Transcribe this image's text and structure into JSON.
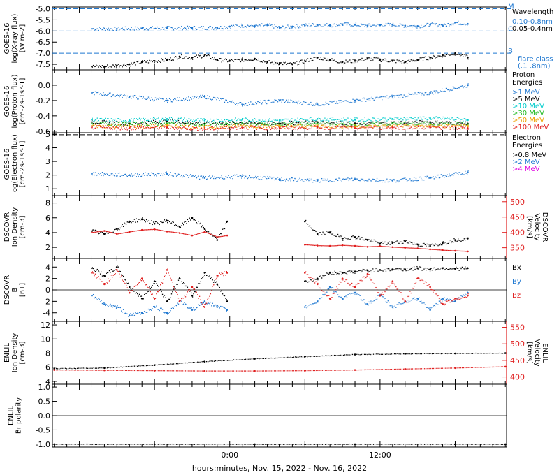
{
  "colors": {
    "black": "#000000",
    "blue": "#1f78d1",
    "cyan": "#00cccc",
    "green": "#22bb22",
    "orange": "#f0a000",
    "red": "#e01f1f",
    "magenta": "#e000e0"
  },
  "xaxis": {
    "label": "hours:minutes, Nov. 15, 2022 - Nov. 16, 2022",
    "ticks": [
      "0:00",
      "12:00"
    ]
  },
  "chart_data": [
    {
      "id": "xray",
      "type": "scatter",
      "ylabel": [
        "GOES-16",
        "log(X-ray flux)",
        "[W m-2]"
      ],
      "ylim": [
        -7.75,
        -4.92
      ],
      "yticks": [
        "-5.0",
        "-5.5",
        "-6.0",
        "-6.5",
        "-7.0",
        "-7.5"
      ],
      "yticks_values": [
        -5.0,
        -5.5,
        -6.0,
        -6.5,
        -7.0,
        -7.5
      ],
      "flare_levels": [
        {
          "label": "M",
          "value": -5.0
        },
        {
          "label": "C",
          "value": -6.0
        },
        {
          "label": "B",
          "value": -7.0
        }
      ],
      "legend_title": "Wavelength",
      "legend": [
        {
          "label": "0.10-0.8nm",
          "color": "#1f78d1"
        },
        {
          "label": "0.05-0.4nm",
          "color": "#000000"
        }
      ],
      "note": [
        "flare class",
        "(.1-.8nm)"
      ],
      "series": [
        {
          "name": "0.10-0.8nm",
          "color": "#1f78d1",
          "x": [
            -11,
            -9,
            -7,
            -5,
            -3,
            -1,
            0,
            1,
            2,
            3,
            4,
            5,
            6,
            7,
            8,
            9,
            10,
            11,
            12,
            13,
            14,
            15,
            16,
            17,
            18,
            19
          ],
          "y": [
            -5.9,
            -5.9,
            -5.88,
            -5.87,
            -5.86,
            -5.85,
            -5.8,
            -5.75,
            -5.77,
            -5.74,
            -5.85,
            -5.8,
            -5.75,
            -5.72,
            -5.74,
            -5.7,
            -5.72,
            -5.76,
            -5.74,
            -5.72,
            -5.76,
            -5.78,
            -5.72,
            -5.75,
            -5.62,
            -5.68
          ]
        },
        {
          "name": "0.05-0.4nm",
          "color": "#000000",
          "x": [
            -11,
            -10,
            -9,
            -8,
            -7,
            -6,
            -5,
            -4,
            -3,
            -2,
            -1,
            0,
            1,
            2,
            3,
            4,
            5,
            6,
            7,
            8,
            9,
            10,
            11,
            12,
            13,
            14,
            15,
            16,
            17,
            18,
            19
          ],
          "y": [
            -7.6,
            -7.6,
            -7.55,
            -7.5,
            -7.4,
            -7.35,
            -7.3,
            -7.15,
            -7.2,
            -7.1,
            -7.3,
            -7.35,
            -7.3,
            -7.25,
            -7.4,
            -7.45,
            -7.5,
            -7.35,
            -7.2,
            -7.3,
            -7.4,
            -7.35,
            -7.25,
            -7.3,
            -7.35,
            -7.4,
            -7.3,
            -7.2,
            -7.1,
            -7.0,
            -7.2
          ]
        }
      ]
    },
    {
      "id": "proton",
      "type": "scatter",
      "ylabel": [
        "GOES-16",
        "log(Proton flux)",
        "[cm-2s-1sr-1]"
      ],
      "ylim": [
        -0.62,
        0.2
      ],
      "yticks": [
        "0.0",
        "-0.2",
        "-0.4",
        "-0.6"
      ],
      "yticks_values": [
        0.0,
        -0.2,
        -0.4,
        -0.6
      ],
      "legend_title": [
        "Proton",
        "Energies"
      ],
      "legend": [
        {
          "label": ">1 MeV",
          "color": "#1f78d1"
        },
        {
          "label": ">5 MeV",
          "color": "#000000"
        },
        {
          "label": ">10 MeV",
          "color": "#00cccc"
        },
        {
          "label": ">30 MeV",
          "color": "#22bb22"
        },
        {
          "label": ">50 MeV",
          "color": "#f0a000"
        },
        {
          "label": ">100 MeV",
          "color": "#e01f1f"
        }
      ],
      "series": [
        {
          "name": ">1 MeV",
          "color": "#1f78d1",
          "x": [
            -11,
            -8,
            -5,
            -2,
            1,
            4,
            7,
            10,
            13,
            16,
            19
          ],
          "y": [
            -0.1,
            -0.15,
            -0.2,
            -0.15,
            -0.25,
            -0.2,
            -0.25,
            -0.2,
            -0.15,
            -0.1,
            0.0
          ]
        },
        {
          "name": ">5 MeV",
          "color": "#000000",
          "x": [
            -11,
            -8,
            -5,
            -2,
            1,
            4,
            7,
            10,
            13,
            16,
            19
          ],
          "y": [
            -0.48,
            -0.5,
            -0.47,
            -0.5,
            -0.49,
            -0.5,
            -0.48,
            -0.5,
            -0.49,
            -0.48,
            -0.5
          ]
        },
        {
          "name": ">10 MeV",
          "color": "#00cccc",
          "x": [
            -11,
            -8,
            -5,
            -2,
            1,
            4,
            7,
            10,
            13,
            16,
            19
          ],
          "y": [
            -0.45,
            -0.46,
            -0.44,
            -0.46,
            -0.45,
            -0.46,
            -0.44,
            -0.45,
            -0.44,
            -0.43,
            -0.45
          ]
        },
        {
          "name": ">30 MeV",
          "color": "#22bb22",
          "x": [
            -11,
            -8,
            -5,
            -2,
            1,
            4,
            7,
            10,
            13,
            16,
            19
          ],
          "y": [
            -0.5,
            -0.51,
            -0.5,
            -0.52,
            -0.5,
            -0.51,
            -0.5,
            -0.52,
            -0.5,
            -0.5,
            -0.51
          ]
        },
        {
          "name": ">50 MeV",
          "color": "#f0a000",
          "x": [
            -11,
            -8,
            -5,
            -2,
            1,
            4,
            7,
            10,
            13,
            16,
            19
          ],
          "y": [
            -0.53,
            -0.54,
            -0.53,
            -0.55,
            -0.53,
            -0.54,
            -0.53,
            -0.54,
            -0.53,
            -0.53,
            -0.54
          ]
        },
        {
          "name": ">100 MeV",
          "color": "#e01f1f",
          "x": [
            -11,
            -8,
            -5,
            -2,
            1,
            4,
            7,
            10,
            13,
            16,
            19
          ],
          "y": [
            -0.55,
            -0.56,
            -0.55,
            -0.57,
            -0.55,
            -0.56,
            -0.55,
            -0.56,
            -0.55,
            -0.55,
            -0.56
          ]
        }
      ]
    },
    {
      "id": "electron",
      "type": "scatter",
      "ylabel": [
        "GOES-16",
        "log(Electron flux)",
        "[cm-2s-1sr-1]"
      ],
      "ylim": [
        0.5,
        5.1
      ],
      "yticks": [
        "1",
        "2",
        "3",
        "4",
        "5"
      ],
      "yticks_values": [
        1,
        2,
        3,
        4,
        5
      ],
      "reference_level": 4.95,
      "legend_title": [
        "Electron",
        "Energies"
      ],
      "legend": [
        {
          "label": ">0.8 MeV",
          "color": "#000000"
        },
        {
          "label": ">2 MeV",
          "color": "#1f78d1"
        },
        {
          "label": ">4 MeV",
          "color": "#e000e0"
        }
      ],
      "series": [
        {
          "name": ">2 MeV",
          "color": "#1f78d1",
          "x": [
            -11,
            -8,
            -5,
            -2,
            1,
            4,
            7,
            10,
            13,
            16,
            19
          ],
          "y": [
            2.1,
            2.0,
            2.1,
            1.8,
            1.9,
            1.7,
            1.6,
            1.7,
            1.6,
            1.8,
            2.2
          ]
        }
      ]
    },
    {
      "id": "dscovr-plasma",
      "type": "scatter",
      "ylabel": [
        "DSCOVR",
        "Ion Density",
        "[cm-3]"
      ],
      "ylabel_right": [
        "DSCOVR",
        "Velocity",
        "[km/s]"
      ],
      "ylim": [
        0.5,
        9
      ],
      "yticks": [
        "2",
        "4",
        "6",
        "8"
      ],
      "yticks_values": [
        2,
        4,
        6,
        8
      ],
      "ylim_right": [
        315,
        520
      ],
      "yticks_right": [
        "350",
        "400",
        "450",
        "500"
      ],
      "yticks_right_values": [
        350,
        400,
        450,
        500
      ],
      "series": [
        {
          "name": "Density",
          "color": "#000000",
          "axis": "left",
          "x": [
            -11,
            -10,
            -9,
            -8,
            -7,
            -6,
            -5,
            -4,
            -3,
            -2,
            -1,
            -0.2,
            6,
            7,
            8,
            9,
            10,
            11,
            12,
            13,
            14,
            15,
            16,
            17,
            18,
            19
          ],
          "y": [
            4.2,
            3.8,
            4.5,
            5.5,
            5.8,
            5.2,
            5.6,
            4.8,
            6.0,
            4.5,
            3.0,
            5.5,
            5.5,
            3.8,
            4.0,
            3.2,
            3.4,
            3.0,
            2.5,
            2.6,
            2.8,
            2.4,
            2.2,
            2.6,
            3.0,
            3.2
          ]
        },
        {
          "name": "Velocity",
          "color": "#e01f1f",
          "axis": "right",
          "x": [
            -11,
            -10,
            -9,
            -8,
            -7,
            -6,
            -5,
            -4,
            -3,
            -2,
            -1,
            -0.2,
            6,
            7,
            8,
            9,
            10,
            11,
            12,
            13,
            14,
            15,
            16,
            17,
            18,
            19
          ],
          "y": [
            400,
            405,
            395,
            402,
            408,
            410,
            403,
            398,
            390,
            402,
            385,
            390,
            360,
            357,
            356,
            358,
            356,
            353,
            355,
            352,
            350,
            348,
            345,
            342,
            340,
            338
          ]
        }
      ]
    },
    {
      "id": "dscovr-mag",
      "type": "scatter",
      "ylabel": [
        "DSCOVR",
        "B",
        "[nT]"
      ],
      "ylim": [
        -5.5,
        5.5
      ],
      "yticks": [
        "-4",
        "-2",
        "0",
        "2",
        "4"
      ],
      "yticks_values": [
        -4,
        -2,
        0,
        2,
        4
      ],
      "legend": [
        {
          "label": "Bx",
          "color": "#000000"
        },
        {
          "label": "By",
          "color": "#1f78d1"
        },
        {
          "label": "Bz",
          "color": "#e01f1f"
        }
      ],
      "series": [
        {
          "name": "Bx",
          "color": "#000000",
          "x": [
            -11,
            -10,
            -9,
            -8,
            -7,
            -6,
            -5,
            -4,
            -3,
            -2,
            -1,
            -0.2,
            6,
            7,
            8,
            9,
            10,
            11,
            12,
            13,
            14,
            15,
            16,
            17,
            18,
            19
          ],
          "y": [
            3.8,
            2.5,
            4.0,
            0.5,
            -1.5,
            1.5,
            -2.0,
            2.0,
            -1.0,
            3.0,
            1.0,
            -2.0,
            1.5,
            2.0,
            3.0,
            3.0,
            3.2,
            3.4,
            3.5,
            3.6,
            3.6,
            3.8,
            3.6,
            3.8,
            3.7,
            3.8
          ]
        },
        {
          "name": "By",
          "color": "#1f78d1",
          "x": [
            -11,
            -10,
            -9,
            -8,
            -7,
            -6,
            -5,
            -4,
            -3,
            -2,
            -1,
            -0.2,
            6,
            7,
            8,
            9,
            10,
            11,
            12,
            13,
            14,
            15,
            16,
            17,
            18,
            19
          ],
          "y": [
            -1.0,
            -2.5,
            -3.0,
            -4.5,
            -4.0,
            -3.0,
            -4.0,
            -2.0,
            -3.5,
            -2.0,
            -3.0,
            -3.5,
            -3.0,
            -2.0,
            0.5,
            -1.5,
            -0.5,
            -2.5,
            -1.0,
            -3.0,
            -2.0,
            -1.5,
            -3.5,
            -1.5,
            -2.0,
            -0.5
          ]
        },
        {
          "name": "Bz",
          "color": "#e01f1f",
          "x": [
            -11,
            -10,
            -9,
            -8,
            -7,
            -6,
            -5,
            -4,
            -3,
            -2,
            -1,
            -0.2,
            6,
            7,
            8,
            9,
            10,
            11,
            12,
            13,
            14,
            15,
            16,
            17,
            18,
            19
          ],
          "y": [
            3.0,
            1.0,
            3.5,
            -0.5,
            2.0,
            -1.5,
            3.5,
            -2.0,
            0.5,
            -3.0,
            2.5,
            3.0,
            3.0,
            1.0,
            -1.5,
            2.0,
            0.5,
            2.8,
            -1.0,
            1.5,
            -2.0,
            2.0,
            0.5,
            -2.5,
            -1.5,
            -1.0
          ]
        }
      ]
    },
    {
      "id": "enlil-plasma",
      "type": "line",
      "ylabel": [
        "ENLIL",
        "Ion Density",
        "[cm-3]"
      ],
      "ylabel_right": [
        "ENLIL",
        "Velocity",
        "[km/s]"
      ],
      "ylim": [
        3.6,
        12.5
      ],
      "yticks": [
        "4",
        "6",
        "8",
        "10",
        "12"
      ],
      "yticks_values": [
        4,
        6,
        8,
        10,
        12
      ],
      "ylim_right": [
        378,
        568
      ],
      "yticks_right": [
        "400",
        "450",
        "500",
        "550"
      ],
      "yticks_right_values": [
        400,
        450,
        500,
        550
      ],
      "series": [
        {
          "name": "Density",
          "color": "#000000",
          "axis": "left",
          "x": [
            -14,
            -10,
            -6,
            -2,
            2,
            6,
            10,
            14,
            18,
            22
          ],
          "y": [
            5.8,
            5.9,
            6.3,
            6.8,
            7.2,
            7.5,
            7.8,
            7.9,
            7.95,
            8.0
          ]
        },
        {
          "name": "Velocity",
          "color": "#e01f1f",
          "axis": "right",
          "x": [
            -14,
            -10,
            -6,
            -2,
            2,
            6,
            10,
            14,
            18,
            22
          ],
          "y": [
            421,
            420,
            419,
            418,
            418,
            419,
            421,
            424,
            427,
            431
          ]
        }
      ]
    },
    {
      "id": "enlil-polarity",
      "type": "line",
      "ylabel": [
        "ENLIL",
        "Br polarity"
      ],
      "ylim": [
        -1.1,
        1.1
      ],
      "yticks": [
        "-1.0",
        "-0.5",
        "0.0",
        "0.5",
        "1.0"
      ],
      "yticks_values": [
        -1.0,
        -0.5,
        0.0,
        0.5,
        1.0
      ],
      "series": [
        {
          "name": "Br polarity",
          "color": "#000000",
          "x": [
            -14,
            -6,
            2,
            10,
            18,
            22
          ],
          "y": [
            -1.0,
            -1.0,
            -1.0,
            -1.0,
            -1.0,
            -1.0
          ]
        }
      ]
    }
  ]
}
